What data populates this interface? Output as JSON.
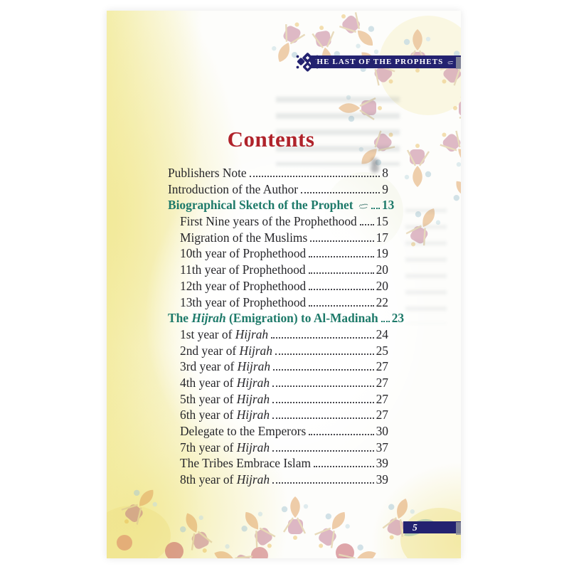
{
  "banner": {
    "title": "THE LAST OF THE PROPHETS",
    "honorific_symbol": "ﷺ",
    "ornament": "kufic-knot-icon"
  },
  "contents_title": "Contents",
  "page_number": "5",
  "colors": {
    "banner_navy": "#232270",
    "title_red": "#b0232b",
    "heading_teal": "#1e7a6a",
    "body_text": "#26262a",
    "yellow_wash": "#f2e998"
  },
  "toc": {
    "entries": [
      {
        "parts": [
          {
            "text": "Publishers Note "
          }
        ],
        "page": "8",
        "level": 0,
        "heading": false
      },
      {
        "parts": [
          {
            "text": "Introduction of the Author"
          }
        ],
        "page": "9",
        "level": 0,
        "heading": false
      },
      {
        "parts": [
          {
            "text": "Biographical Sketch of the  Prophet "
          },
          {
            "symbol": "ﷺ"
          }
        ],
        "page": "13",
        "level": 0,
        "heading": true
      },
      {
        "parts": [
          {
            "text": "First Nine years of the Prophethood"
          }
        ],
        "page": "15",
        "level": 1,
        "heading": false
      },
      {
        "parts": [
          {
            "text": "Migration of the Muslims "
          }
        ],
        "page": "17",
        "level": 1,
        "heading": false
      },
      {
        "parts": [
          {
            "text": "10th year of Prophethood "
          }
        ],
        "page": "19",
        "level": 1,
        "heading": false
      },
      {
        "parts": [
          {
            "text": "11th year of Prophethood"
          }
        ],
        "page": "20",
        "level": 1,
        "heading": false
      },
      {
        "parts": [
          {
            "text": "12th year of Prophethood "
          }
        ],
        "page": "20",
        "level": 1,
        "heading": false
      },
      {
        "parts": [
          {
            "text": "13th year of Prophethood "
          }
        ],
        "page": "22",
        "level": 1,
        "heading": false
      },
      {
        "parts": [
          {
            "text": "The "
          },
          {
            "text": "Hijrah",
            "italic": true
          },
          {
            "text": " (Emigration) to Al-Madinah"
          }
        ],
        "page": "23",
        "level": 0,
        "heading": true
      },
      {
        "parts": [
          {
            "text": "1st year of "
          },
          {
            "text": "Hijrah",
            "italic": true
          },
          {
            "text": " "
          }
        ],
        "page": "24",
        "level": 1,
        "heading": false
      },
      {
        "parts": [
          {
            "text": "2nd year of "
          },
          {
            "text": "Hijrah",
            "italic": true
          }
        ],
        "page": "25",
        "level": 1,
        "heading": false
      },
      {
        "parts": [
          {
            "text": "3rd year of "
          },
          {
            "text": "Hijrah",
            "italic": true
          },
          {
            "text": " "
          }
        ],
        "page": "27",
        "level": 1,
        "heading": false
      },
      {
        "parts": [
          {
            "text": "4th year of "
          },
          {
            "text": "Hijrah",
            "italic": true
          },
          {
            "text": " "
          }
        ],
        "page": "27",
        "level": 1,
        "heading": false
      },
      {
        "parts": [
          {
            "text": "5th year of "
          },
          {
            "text": "Hijrah",
            "italic": true
          },
          {
            "text": " "
          }
        ],
        "page": "27",
        "level": 1,
        "heading": false
      },
      {
        "parts": [
          {
            "text": "6th year of "
          },
          {
            "text": "Hijrah",
            "italic": true
          },
          {
            "text": " "
          }
        ],
        "page": "27",
        "level": 1,
        "heading": false
      },
      {
        "parts": [
          {
            "text": "Delegate to the Emperors "
          }
        ],
        "page": "30",
        "level": 1,
        "heading": false
      },
      {
        "parts": [
          {
            "text": "7th year of "
          },
          {
            "text": "Hijrah",
            "italic": true
          },
          {
            "text": " "
          }
        ],
        "page": "37",
        "level": 1,
        "heading": false
      },
      {
        "parts": [
          {
            "text": "The Tribes Embrace Islam"
          }
        ],
        "page": "39",
        "level": 1,
        "heading": false
      },
      {
        "parts": [
          {
            "text": "8th year of "
          },
          {
            "text": "Hijrah",
            "italic": true
          },
          {
            "text": " "
          }
        ],
        "page": "39",
        "level": 1,
        "heading": false
      }
    ]
  }
}
